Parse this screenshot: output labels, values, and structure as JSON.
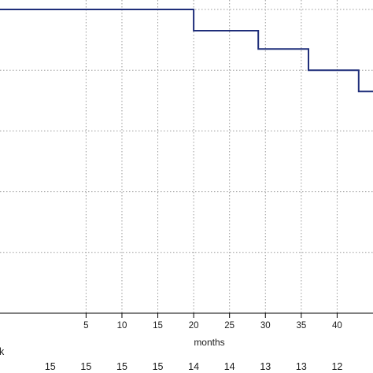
{
  "chart_data": {
    "type": "line",
    "step": true,
    "xlabel": "months",
    "xlim": [
      -7,
      45
    ],
    "ylim": [
      0,
      1
    ],
    "xticks": [
      5,
      10,
      15,
      20,
      25,
      30,
      35,
      40
    ],
    "yticks": [
      0.0,
      0.2,
      0.4,
      0.6,
      0.8,
      1.0
    ],
    "grid": true,
    "series": [
      {
        "color": "#1f2e7a",
        "x": [
          -7,
          20,
          20,
          29,
          29,
          36,
          36,
          43,
          43,
          45
        ],
        "y": [
          1.0,
          1.0,
          0.93,
          0.93,
          0.87,
          0.87,
          0.8,
          0.8,
          0.73,
          0.73
        ]
      }
    ],
    "risk_table": {
      "legend_fragment": "k",
      "legend_color": "#1f2e7a",
      "times": [
        0,
        5,
        10,
        15,
        20,
        25,
        30,
        35,
        40
      ],
      "counts": [
        "15",
        "15",
        "15",
        "15",
        "14",
        "14",
        "13",
        "13",
        "12"
      ]
    }
  }
}
